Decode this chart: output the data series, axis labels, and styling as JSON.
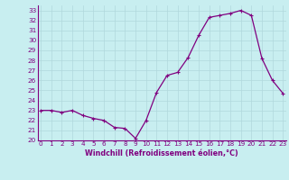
{
  "x": [
    0,
    1,
    2,
    3,
    4,
    5,
    6,
    7,
    8,
    9,
    10,
    11,
    12,
    13,
    14,
    15,
    16,
    17,
    18,
    19,
    20,
    21,
    22,
    23
  ],
  "y": [
    23.0,
    23.0,
    22.8,
    23.0,
    22.5,
    22.2,
    22.0,
    21.3,
    21.2,
    20.2,
    22.0,
    24.8,
    26.5,
    26.8,
    28.3,
    30.5,
    32.3,
    32.5,
    32.7,
    33.0,
    32.5,
    28.2,
    26.0,
    24.7
  ],
  "line_color": "#800080",
  "marker": "+",
  "marker_size": 3,
  "marker_linewidth": 0.8,
  "linewidth": 0.9,
  "xlim": [
    -0.3,
    23.3
  ],
  "ylim": [
    20,
    33.5
  ],
  "yticks": [
    20,
    21,
    22,
    23,
    24,
    25,
    26,
    27,
    28,
    29,
    30,
    31,
    32,
    33
  ],
  "xticks": [
    0,
    1,
    2,
    3,
    4,
    5,
    6,
    7,
    8,
    9,
    10,
    11,
    12,
    13,
    14,
    15,
    16,
    17,
    18,
    19,
    20,
    21,
    22,
    23
  ],
  "xlabel": "Windchill (Refroidissement éolien,°C)",
  "xlabel_fontsize": 5.8,
  "tick_fontsize": 5.2,
  "background_color": "#c8eef0",
  "grid_color": "#b0d8dc",
  "spine_color": "#800080",
  "tick_color": "#800080"
}
